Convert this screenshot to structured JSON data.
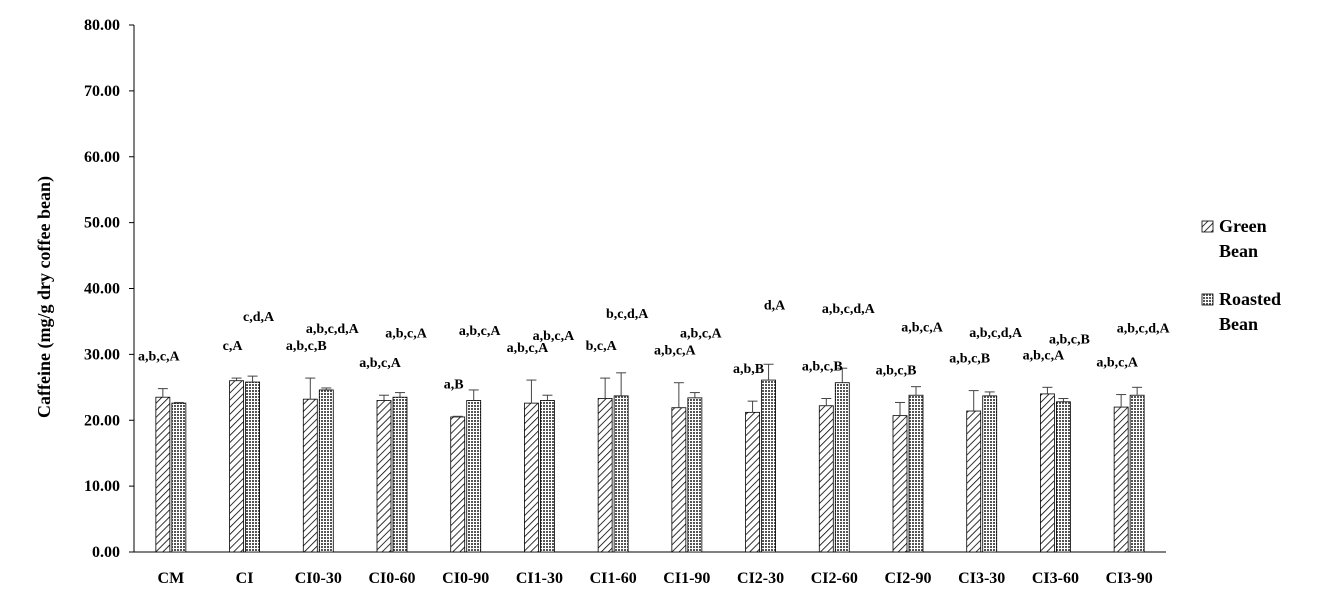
{
  "chart_data": {
    "type": "bar",
    "title": "",
    "xlabel": "",
    "ylabel": "Caffeine (mg/g dry coffee bean)",
    "ylim": [
      0,
      80
    ],
    "yticks": [
      "0.00",
      "10.00",
      "20.00",
      "30.00",
      "40.00",
      "50.00",
      "60.00",
      "70.00",
      "80.00"
    ],
    "grid": false,
    "legend_position": "right",
    "categories": [
      "CM",
      "CI",
      "CI0-30",
      "CI0-60",
      "CI0-90",
      "CI1-30",
      "CI1-60",
      "CI1-90",
      "CI2-30",
      "CI2-60",
      "CI2-90",
      "CI3-30",
      "CI3-60",
      "CI3-90"
    ],
    "series": [
      {
        "name": "Green Bean",
        "pattern": "diagonal-hatch",
        "values": [
          23.5,
          26.0,
          23.2,
          23.0,
          20.5,
          22.6,
          23.3,
          21.9,
          21.2,
          22.2,
          20.7,
          21.4,
          24.0,
          22.0
        ],
        "errors": [
          1.3,
          0.4,
          3.2,
          0.8,
          0.1,
          3.5,
          3.1,
          3.8,
          1.7,
          1.1,
          2.0,
          3.1,
          1.0,
          1.9
        ],
        "labels": [
          "a,b,c,A",
          "c,A",
          "a,b,c,B",
          "a,b,c,A",
          "a,B",
          "a,b,c,A",
          "b,c,A",
          "a,b,c,A",
          "a,b,B",
          "a,b,c,B",
          "a,b,c,B",
          "a,b,c,B",
          "a,b,c,A",
          "a,b,c,A"
        ]
      },
      {
        "name": "Roasted Bean",
        "pattern": "dense-grid",
        "values": [
          22.6,
          25.8,
          24.6,
          23.5,
          23.0,
          23.0,
          23.7,
          23.4,
          26.1,
          25.7,
          23.8,
          23.7,
          22.8,
          23.8
        ],
        "errors": [
          0.1,
          0.9,
          0.3,
          0.7,
          1.6,
          0.8,
          3.5,
          0.8,
          2.4,
          2.2,
          1.3,
          0.6,
          0.5,
          1.2
        ],
        "labels": [
          "",
          "c,d,A",
          "a,b,c,d,A",
          "a,b,c,A",
          "a,b,c,A",
          "a,b,c,A",
          "b,c,d,A",
          "a,b,c,A",
          "d,A",
          "a,b,c,d,A",
          "a,b,c,A",
          "a,b,c,d,A",
          "a,b,c,B",
          "a,b,c,d,A"
        ]
      }
    ],
    "legend": [
      {
        "line1": "Green",
        "line2": "Bean"
      },
      {
        "line1": "Roasted",
        "line2": "Bean"
      }
    ]
  }
}
